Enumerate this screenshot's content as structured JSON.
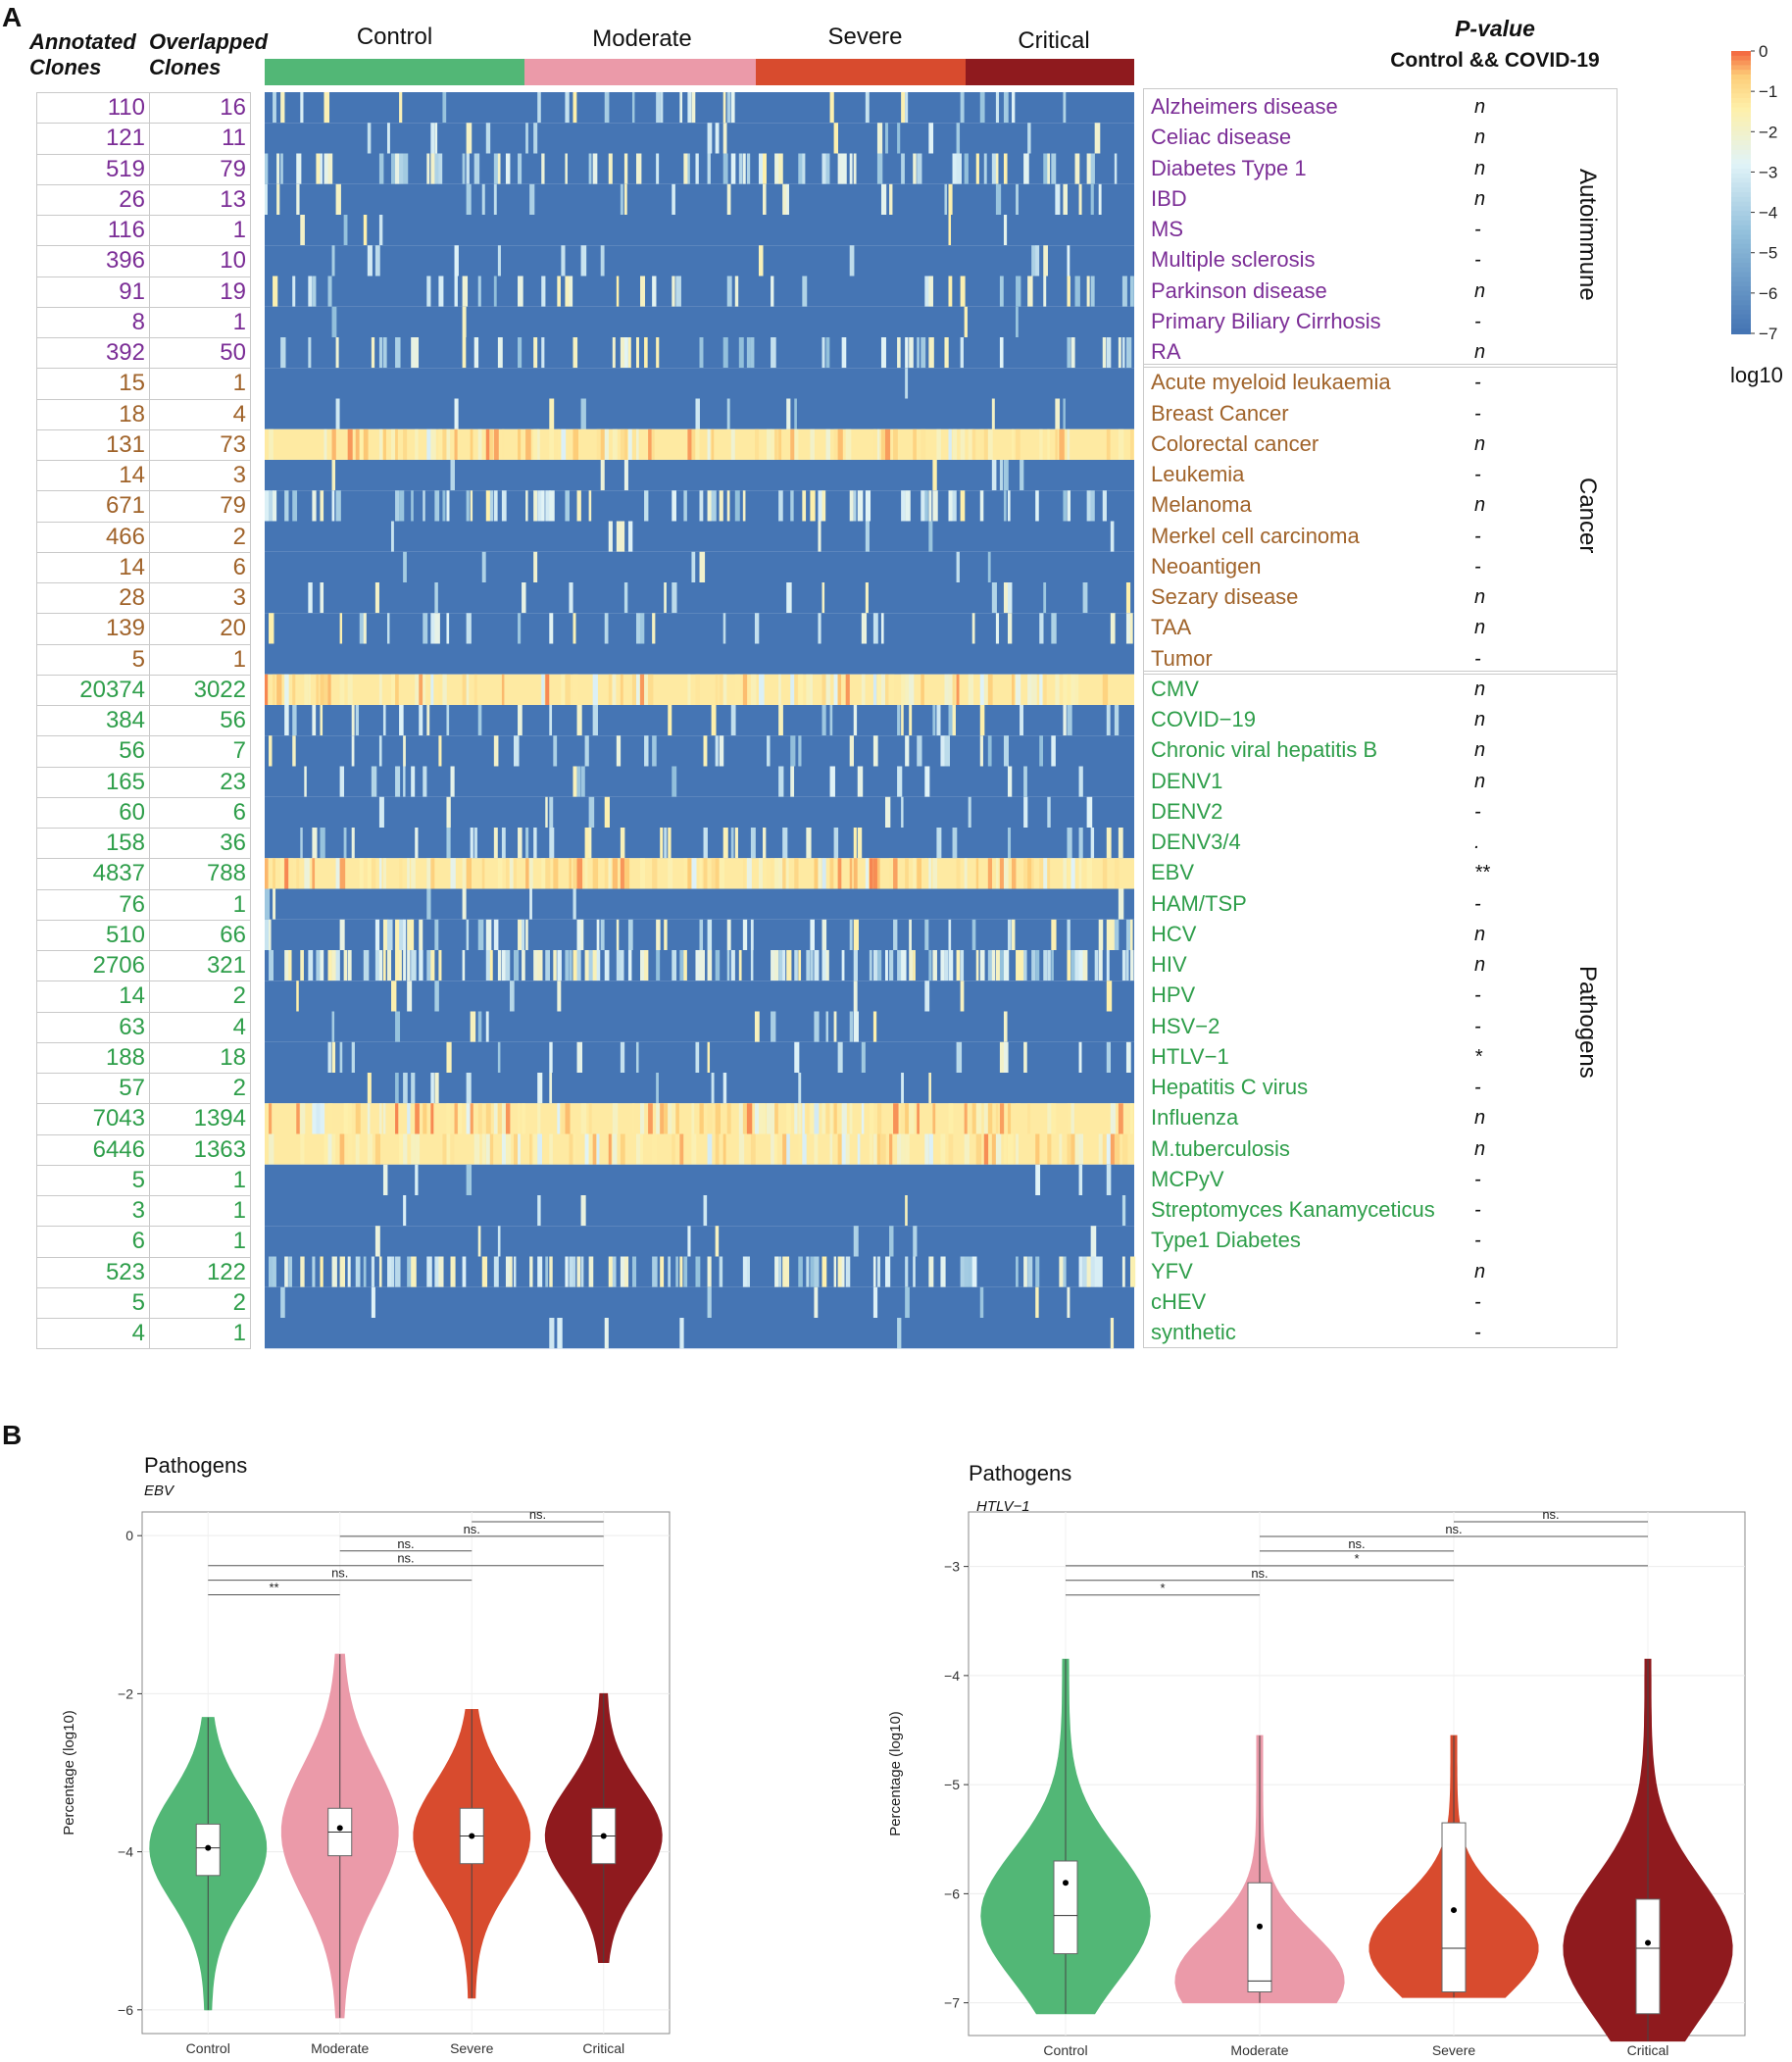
{
  "panel_a": {
    "letter": "A",
    "col_annot_line1": "Annotated",
    "col_annot_line2": "Clones",
    "col_overlap_line1": "Overlapped",
    "col_overlap_line2": "Clones",
    "groups": [
      {
        "label": "Control",
        "color": "#52b776"
      },
      {
        "label": "Moderate",
        "color": "#eb9aa9"
      },
      {
        "label": "Severe",
        "color": "#d84b2e"
      },
      {
        "label": "Critical",
        "color": "#8f1a1e"
      }
    ],
    "pvalue_title": "P-value",
    "pvalue_subtitle": "Control && COVID-19",
    "legend": {
      "title": "log10",
      "ticks": [
        "0",
        "−1",
        "−2",
        "−3",
        "−4",
        "−5",
        "−6",
        "−7"
      ]
    },
    "categories": [
      {
        "label": "Autoimmune",
        "color": "#7b2d96"
      },
      {
        "label": "Cancer",
        "color": "#a0632a"
      },
      {
        "label": "Pathogens",
        "color": "#2e9e4a"
      }
    ],
    "rows": [
      {
        "name": "Alzheimers disease",
        "annot": "110",
        "overlap": "16",
        "p": "n",
        "cat": 0,
        "level": 0.1
      },
      {
        "name": "Celiac disease",
        "annot": "121",
        "overlap": "11",
        "p": "n",
        "cat": 0,
        "level": 0.05
      },
      {
        "name": "Diabetes Type 1",
        "annot": "519",
        "overlap": "79",
        "p": "n",
        "cat": 0,
        "level": 0.25
      },
      {
        "name": "IBD",
        "annot": "26",
        "overlap": "13",
        "p": "n",
        "cat": 0,
        "level": 0.08
      },
      {
        "name": "MS",
        "annot": "116",
        "overlap": "1",
        "p": "-",
        "cat": 0,
        "level": 0.02
      },
      {
        "name": "Multiple sclerosis",
        "annot": "396",
        "overlap": "10",
        "p": "-",
        "cat": 0,
        "level": 0.04
      },
      {
        "name": "Parkinson disease",
        "annot": "91",
        "overlap": "19",
        "p": "n",
        "cat": 0,
        "level": 0.1
      },
      {
        "name": "Primary Biliary Cirrhosis",
        "annot": "8",
        "overlap": "1",
        "p": "-",
        "cat": 0,
        "level": 0.02
      },
      {
        "name": "RA",
        "annot": "392",
        "overlap": "50",
        "p": "n",
        "cat": 0,
        "level": 0.18
      },
      {
        "name": "Acute myeloid leukaemia",
        "annot": "15",
        "overlap": "1",
        "p": "-",
        "cat": 1,
        "level": 0.02
      },
      {
        "name": "Breast Cancer",
        "annot": "18",
        "overlap": "4",
        "p": "-",
        "cat": 1,
        "level": 0.04
      },
      {
        "name": "Colorectal cancer",
        "annot": "131",
        "overlap": "73",
        "p": "n",
        "cat": 1,
        "level": 0.55
      },
      {
        "name": "Leukemia",
        "annot": "14",
        "overlap": "3",
        "p": "-",
        "cat": 1,
        "level": 0.03
      },
      {
        "name": "Melanoma",
        "annot": "671",
        "overlap": "79",
        "p": "n",
        "cat": 1,
        "level": 0.22
      },
      {
        "name": "Merkel cell carcinoma",
        "annot": "466",
        "overlap": "2",
        "p": "-",
        "cat": 1,
        "level": 0.02
      },
      {
        "name": "Neoantigen",
        "annot": "14",
        "overlap": "6",
        "p": "-",
        "cat": 1,
        "level": 0.05
      },
      {
        "name": "Sezary disease",
        "annot": "28",
        "overlap": "3",
        "p": "n",
        "cat": 1,
        "level": 0.06
      },
      {
        "name": "TAA",
        "annot": "139",
        "overlap": "20",
        "p": "n",
        "cat": 1,
        "level": 0.1
      },
      {
        "name": "Tumor",
        "annot": "5",
        "overlap": "1",
        "p": "-",
        "cat": 1,
        "level": 0.01
      },
      {
        "name": "CMV",
        "annot": "20374",
        "overlap": "3022",
        "p": "n",
        "cat": 2,
        "level": 0.95
      },
      {
        "name": "COVID−19",
        "annot": "384",
        "overlap": "56",
        "p": "n",
        "cat": 2,
        "level": 0.12
      },
      {
        "name": "Chronic viral hepatitis B",
        "annot": "56",
        "overlap": "7",
        "p": "n",
        "cat": 2,
        "level": 0.08
      },
      {
        "name": "DENV1",
        "annot": "165",
        "overlap": "23",
        "p": "n",
        "cat": 2,
        "level": 0.1
      },
      {
        "name": "DENV2",
        "annot": "60",
        "overlap": "6",
        "p": "-",
        "cat": 2,
        "level": 0.05
      },
      {
        "name": "DENV3/4",
        "annot": "158",
        "overlap": "36",
        "p": ".",
        "cat": 2,
        "level": 0.16
      },
      {
        "name": "EBV",
        "annot": "4837",
        "overlap": "788",
        "p": "**",
        "cat": 2,
        "level": 0.85
      },
      {
        "name": "HAM/TSP",
        "annot": "76",
        "overlap": "1",
        "p": "-",
        "cat": 2,
        "level": 0.02
      },
      {
        "name": "HCV",
        "annot": "510",
        "overlap": "66",
        "p": "n",
        "cat": 2,
        "level": 0.2
      },
      {
        "name": "HIV",
        "annot": "2706",
        "overlap": "321",
        "p": "n",
        "cat": 2,
        "level": 0.45
      },
      {
        "name": "HPV",
        "annot": "14",
        "overlap": "2",
        "p": "-",
        "cat": 2,
        "level": 0.03
      },
      {
        "name": "HSV−2",
        "annot": "63",
        "overlap": "4",
        "p": "-",
        "cat": 2,
        "level": 0.04
      },
      {
        "name": "HTLV−1",
        "annot": "188",
        "overlap": "18",
        "p": "*",
        "cat": 2,
        "level": 0.12
      },
      {
        "name": "Hepatitis C virus",
        "annot": "57",
        "overlap": "2",
        "p": "-",
        "cat": 2,
        "level": 0.03
      },
      {
        "name": "Influenza",
        "annot": "7043",
        "overlap": "1394",
        "p": "n",
        "cat": 2,
        "level": 0.92
      },
      {
        "name": "M.tuberculosis",
        "annot": "6446",
        "overlap": "1363",
        "p": "n",
        "cat": 2,
        "level": 0.93
      },
      {
        "name": "MCPyV",
        "annot": "5",
        "overlap": "1",
        "p": "-",
        "cat": 2,
        "level": 0.02
      },
      {
        "name": "Streptomyces Kanamyceticus",
        "annot": "3",
        "overlap": "1",
        "p": "-",
        "cat": 2,
        "level": 0.02
      },
      {
        "name": "Type1 Diabetes",
        "annot": "6",
        "overlap": "1",
        "p": "-",
        "cat": 2,
        "level": 0.02
      },
      {
        "name": "YFV",
        "annot": "523",
        "overlap": "122",
        "p": "n",
        "cat": 2,
        "level": 0.35
      },
      {
        "name": "cHEV",
        "annot": "5",
        "overlap": "2",
        "p": "-",
        "cat": 2,
        "level": 0.03
      },
      {
        "name": "synthetic",
        "annot": "4",
        "overlap": "1",
        "p": "-",
        "cat": 2,
        "level": 0.02
      }
    ]
  },
  "panel_b": {
    "letter": "B",
    "ylabel": "Percentage  (log10)",
    "categories": [
      "Control",
      "Moderate",
      "Severe",
      "Critical"
    ],
    "colors": [
      "#52b776",
      "#eb9aa9",
      "#d84b2e",
      "#8f1a1e"
    ]
  },
  "chart_data": [
    {
      "type": "violin",
      "title": "Pathogens",
      "subtitle": "EBV",
      "xlabel": "",
      "ylabel": "Percentage  (log10)",
      "categories": [
        "Control",
        "Moderate",
        "Severe",
        "Critical"
      ],
      "ylim": [
        -6.3,
        0.3
      ],
      "yticks": [
        0,
        -2,
        -4,
        -6
      ],
      "medians": [
        -3.95,
        -3.75,
        -3.8,
        -3.8
      ],
      "q1": [
        -4.3,
        -4.05,
        -4.15,
        -4.15
      ],
      "q3": [
        -3.65,
        -3.45,
        -3.45,
        -3.45
      ],
      "means": [
        -3.95,
        -3.7,
        -3.8,
        -3.8
      ],
      "mins": [
        -6.0,
        -6.1,
        -5.85,
        -5.4
      ],
      "maxs": [
        -2.3,
        -1.5,
        -2.2,
        -2.0
      ],
      "comparisons": [
        {
          "a": 0,
          "b": 1,
          "label": "**"
        },
        {
          "a": 0,
          "b": 2,
          "label": "ns."
        },
        {
          "a": 0,
          "b": 3,
          "label": "ns."
        },
        {
          "a": 1,
          "b": 2,
          "label": "ns."
        },
        {
          "a": 1,
          "b": 3,
          "label": "ns."
        },
        {
          "a": 2,
          "b": 3,
          "label": "ns."
        }
      ]
    },
    {
      "type": "violin",
      "title": "Pathogens",
      "subtitle": "HTLV−1",
      "xlabel": "",
      "ylabel": "Percentage  (log10)",
      "categories": [
        "Control",
        "Moderate",
        "Severe",
        "Critical"
      ],
      "ylim": [
        -7.3,
        -2.5
      ],
      "yticks": [
        -3,
        -4,
        -5,
        -6,
        -7
      ],
      "medians": [
        -6.2,
        -6.8,
        -6.5,
        -6.5
      ],
      "q1": [
        -6.55,
        -6.9,
        -6.9,
        -7.1
      ],
      "q3": [
        -5.7,
        -5.9,
        -5.35,
        -6.05
      ],
      "means": [
        -5.9,
        -6.3,
        -6.15,
        -6.45
      ],
      "mins": [
        -7.1,
        -7.0,
        -6.95,
        -7.35
      ],
      "maxs": [
        -3.85,
        -4.55,
        -4.55,
        -3.85
      ],
      "comparisons": [
        {
          "a": 0,
          "b": 1,
          "label": "*"
        },
        {
          "a": 0,
          "b": 2,
          "label": "ns."
        },
        {
          "a": 0,
          "b": 3,
          "label": "*"
        },
        {
          "a": 1,
          "b": 2,
          "label": "ns."
        },
        {
          "a": 1,
          "b": 3,
          "label": "ns."
        },
        {
          "a": 2,
          "b": 3,
          "label": "ns."
        }
      ]
    }
  ]
}
